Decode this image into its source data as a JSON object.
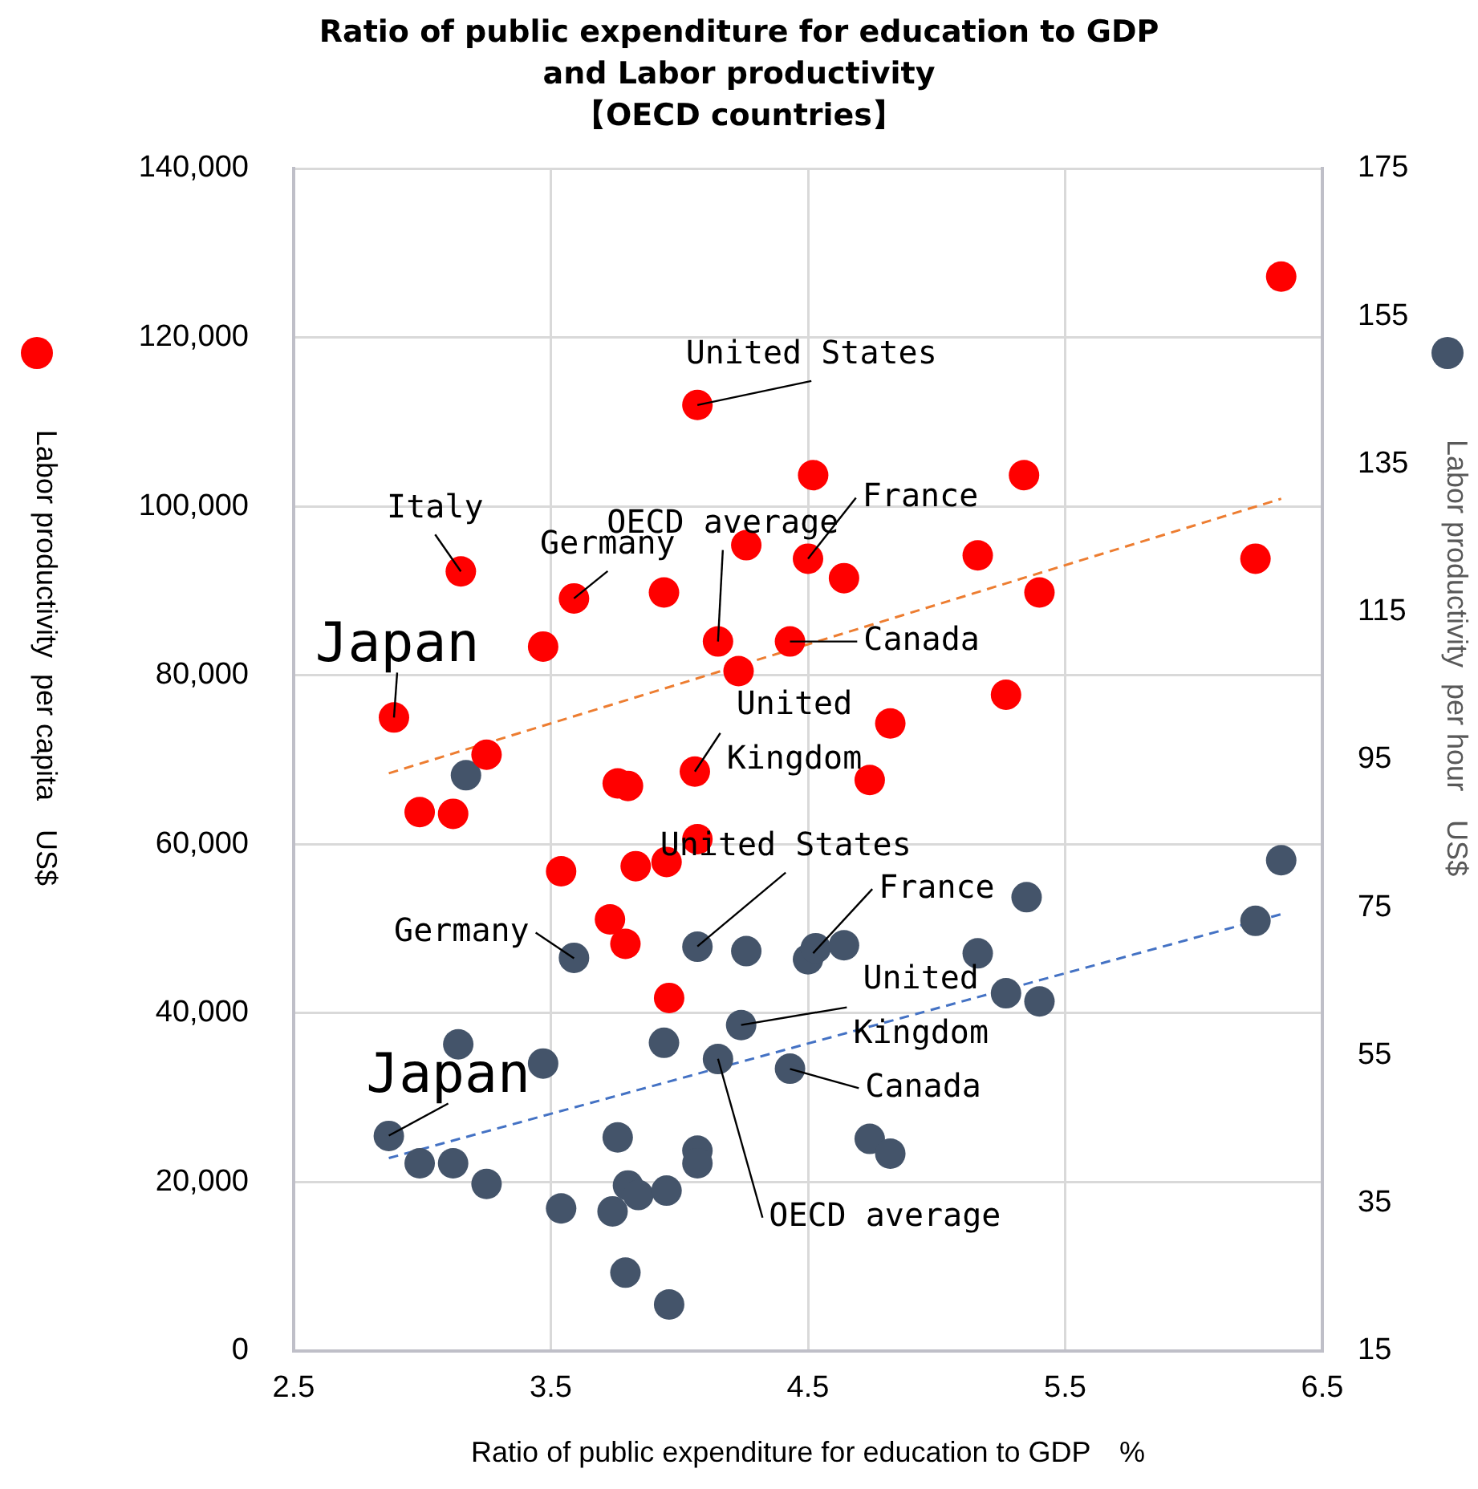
{
  "chart_data": {
    "type": "scatter",
    "title": "Ratio of public expenditure for education to GDP\nand Labor productivity\n【OECD countries】",
    "xlabel": "Ratio of public expenditure for education to GDP　%",
    "ylabel": "Labor productivity  per capita　US$",
    "y2label": "Labor productivity  per hour　US$",
    "xlim": [
      2.5,
      6.5
    ],
    "xticks": [
      2.5,
      3.5,
      4.5,
      5.5,
      6.5
    ],
    "ylim": [
      0,
      140000
    ],
    "yticks": [
      0,
      {
        "value": 20000,
        "label": "20,000"
      },
      {
        "value": 40000,
        "label": "40,000"
      },
      {
        "value": 60000,
        "label": "60,000"
      },
      {
        "value": 80000,
        "label": "80,000"
      },
      {
        "value": 100000,
        "label": "100,000"
      },
      {
        "value": 120000,
        "label": "120,000"
      },
      {
        "value": 140000,
        "label": "140,000"
      }
    ],
    "y2lim": [
      15,
      175
    ],
    "y2ticks": [
      15,
      35,
      55,
      75,
      95,
      115,
      135,
      155,
      175
    ],
    "grid": true,
    "marker": "circle",
    "series": [
      {
        "color": "#ff0000",
        "x": [
          2.89,
          3.15,
          3.59,
          3.47,
          3.94,
          4.07,
          4.26,
          4.15,
          4.23,
          4.43,
          4.52,
          4.5,
          4.64,
          5.16,
          5.34,
          5.4,
          6.34,
          6.24,
          4.82,
          4.74,
          5.27,
          3.25,
          2.99,
          3.12,
          3.76,
          3.8,
          4.06,
          4.07,
          3.54,
          3.83,
          3.95,
          3.73,
          3.79,
          3.96
        ],
        "values": [
          75000,
          92300,
          89100,
          83400,
          89800,
          112000,
          95400,
          84000,
          80500,
          84000,
          103700,
          93800,
          91500,
          94200,
          103700,
          89800,
          127200,
          93800,
          74300,
          67600,
          77700,
          70600,
          63800,
          63600,
          67200,
          66900,
          68600,
          60600,
          56800,
          57400,
          57900,
          51100,
          48200,
          41800
        ]
      },
      {
        "color": "#44546a",
        "axis": "y2",
        "x": [
          2.87,
          3.17,
          3.59,
          4.07,
          4.26,
          4.5,
          4.53,
          4.64,
          5.16,
          5.35,
          5.27,
          5.4,
          6.24,
          6.34,
          3.14,
          3.47,
          3.94,
          4.24,
          4.15,
          4.43,
          4.74,
          4.82,
          2.99,
          3.12,
          3.25,
          3.76,
          4.07,
          4.07,
          3.54,
          3.8,
          3.84,
          3.74,
          3.95,
          3.79,
          3.96
        ],
        "values": [
          44.1,
          92.9,
          68.2,
          69.7,
          69.1,
          68.0,
          69.5,
          69.9,
          68.8,
          76.4,
          63.4,
          62.3,
          73.2,
          81.4,
          56.5,
          53.9,
          56.7,
          59.1,
          54.5,
          53.2,
          43.7,
          41.7,
          40.4,
          40.4,
          37.6,
          43.9,
          42.1,
          40.4,
          34.3,
          37.4,
          36.1,
          33.9,
          36.7,
          25.6,
          21.3
        ]
      },
      {
        "type": "line",
        "line_style": "dashed",
        "marker": "none",
        "color": "#ed7d31",
        "x": [
          2.87,
          6.34
        ],
        "values": [
          68400,
          100900
        ]
      },
      {
        "type": "line",
        "line_style": "dashed",
        "marker": "none",
        "color": "#4472c4",
        "axis": "y2",
        "x": [
          2.87,
          6.34
        ],
        "values": [
          41.1,
          74.1
        ]
      }
    ],
    "annotations": [
      {
        "text": "Japan",
        "x": 2.89,
        "y": 75000
      },
      {
        "text": "Italy",
        "x": 3.15,
        "y": 92300
      },
      {
        "text": "Germany",
        "x": 3.59,
        "y": 89100
      },
      {
        "text": "United States",
        "x": 4.07,
        "y": 112000
      },
      {
        "text": "OECD average",
        "x": 4.15,
        "y": 84000
      },
      {
        "text": "France",
        "x": 4.5,
        "y": 93800
      },
      {
        "text": "Canada",
        "x": 4.43,
        "y": 84000
      },
      {
        "text": "United Kingdom",
        "x": 4.06,
        "y": 68600
      },
      {
        "text": "United States",
        "x": 4.07,
        "y": 47900
      },
      {
        "text": "France",
        "x": 4.52,
        "y": 47100
      },
      {
        "text": "Germany",
        "x": 3.59,
        "y": 46500
      },
      {
        "text": "United Kingdom",
        "x": 4.24,
        "y": 38600
      },
      {
        "text": "Canada",
        "x": 4.43,
        "y": 33400
      },
      {
        "text": "OECD average",
        "x": 4.15,
        "y": 34600
      },
      {
        "text": "Japan",
        "x": 2.87,
        "y": 25500
      }
    ]
  }
}
